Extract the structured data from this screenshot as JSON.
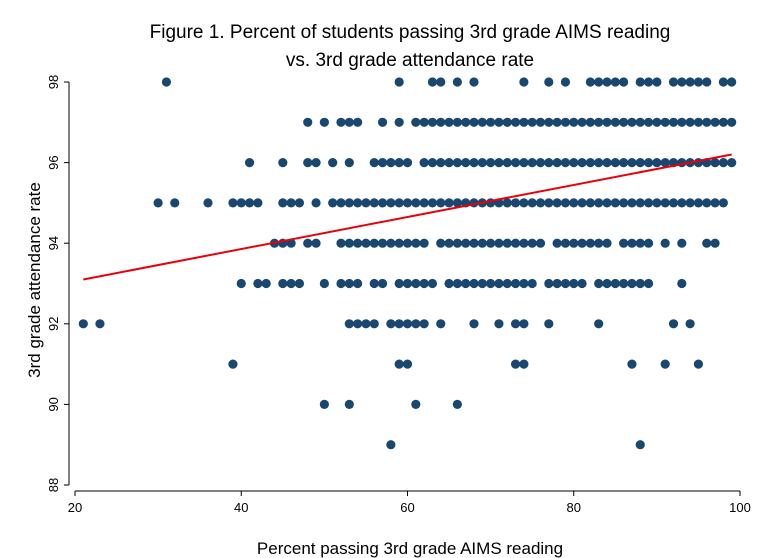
{
  "chart_data": {
    "type": "scatter",
    "title_lines": [
      "Figure 1. Percent of students passing 3rd grade AIMS reading",
      "vs. 3rd grade attendance rate"
    ],
    "xlabel": "Percent passing 3rd grade AIMS reading",
    "ylabel": "3rd grade attendance rate",
    "xlim": [
      20,
      100
    ],
    "ylim": [
      88,
      98
    ],
    "xticks": [
      "20",
      "40",
      "60",
      "80",
      "100"
    ],
    "yticks": [
      "88",
      "90",
      "92",
      "94",
      "96",
      "98"
    ],
    "grid": false,
    "colors": {
      "points": "#1a476f",
      "fit_line": "#e8000b",
      "axes": "#000000"
    },
    "series": [
      {
        "type": "scatter",
        "points": [
          [
            31,
            98
          ],
          [
            59,
            98
          ],
          [
            63,
            98
          ],
          [
            64,
            98
          ],
          [
            66,
            98
          ],
          [
            68,
            98
          ],
          [
            74,
            98
          ],
          [
            77,
            98
          ],
          [
            79,
            98
          ],
          [
            82,
            98
          ],
          [
            83,
            98
          ],
          [
            84,
            98
          ],
          [
            85,
            98
          ],
          [
            86,
            98
          ],
          [
            88,
            98
          ],
          [
            89,
            98
          ],
          [
            90,
            98
          ],
          [
            92,
            98
          ],
          [
            93,
            98
          ],
          [
            94,
            98
          ],
          [
            95,
            98
          ],
          [
            96,
            98
          ],
          [
            98,
            98
          ],
          [
            99,
            98
          ],
          [
            48,
            97
          ],
          [
            50,
            97
          ],
          [
            52,
            97
          ],
          [
            53,
            97
          ],
          [
            54,
            97
          ],
          [
            57,
            97
          ],
          [
            59,
            97
          ],
          [
            61,
            97
          ],
          [
            62,
            97
          ],
          [
            63,
            97
          ],
          [
            64,
            97
          ],
          [
            65,
            97
          ],
          [
            66,
            97
          ],
          [
            67,
            97
          ],
          [
            68,
            97
          ],
          [
            69,
            97
          ],
          [
            70,
            97
          ],
          [
            71,
            97
          ],
          [
            72,
            97
          ],
          [
            73,
            97
          ],
          [
            74,
            97
          ],
          [
            75,
            97
          ],
          [
            76,
            97
          ],
          [
            77,
            97
          ],
          [
            78,
            97
          ],
          [
            79,
            97
          ],
          [
            80,
            97
          ],
          [
            81,
            97
          ],
          [
            82,
            97
          ],
          [
            83,
            97
          ],
          [
            84,
            97
          ],
          [
            85,
            97
          ],
          [
            86,
            97
          ],
          [
            87,
            97
          ],
          [
            88,
            97
          ],
          [
            89,
            97
          ],
          [
            90,
            97
          ],
          [
            91,
            97
          ],
          [
            92,
            97
          ],
          [
            93,
            97
          ],
          [
            94,
            97
          ],
          [
            95,
            97
          ],
          [
            96,
            97
          ],
          [
            97,
            97
          ],
          [
            98,
            97
          ],
          [
            99,
            97
          ],
          [
            41,
            96
          ],
          [
            45,
            96
          ],
          [
            48,
            96
          ],
          [
            49,
            96
          ],
          [
            51,
            96
          ],
          [
            53,
            96
          ],
          [
            56,
            96
          ],
          [
            57,
            96
          ],
          [
            58,
            96
          ],
          [
            59,
            96
          ],
          [
            60,
            96
          ],
          [
            62,
            96
          ],
          [
            63,
            96
          ],
          [
            64,
            96
          ],
          [
            65,
            96
          ],
          [
            66,
            96
          ],
          [
            67,
            96
          ],
          [
            68,
            96
          ],
          [
            69,
            96
          ],
          [
            70,
            96
          ],
          [
            71,
            96
          ],
          [
            72,
            96
          ],
          [
            73,
            96
          ],
          [
            74,
            96
          ],
          [
            75,
            96
          ],
          [
            76,
            96
          ],
          [
            77,
            96
          ],
          [
            78,
            96
          ],
          [
            79,
            96
          ],
          [
            80,
            96
          ],
          [
            81,
            96
          ],
          [
            82,
            96
          ],
          [
            83,
            96
          ],
          [
            84,
            96
          ],
          [
            85,
            96
          ],
          [
            86,
            96
          ],
          [
            87,
            96
          ],
          [
            88,
            96
          ],
          [
            89,
            96
          ],
          [
            90,
            96
          ],
          [
            91,
            96
          ],
          [
            92,
            96
          ],
          [
            93,
            96
          ],
          [
            94,
            96
          ],
          [
            95,
            96
          ],
          [
            96,
            96
          ],
          [
            97,
            96
          ],
          [
            98,
            96
          ],
          [
            99,
            96
          ],
          [
            30,
            95
          ],
          [
            32,
            95
          ],
          [
            36,
            95
          ],
          [
            39,
            95
          ],
          [
            40,
            95
          ],
          [
            41,
            95
          ],
          [
            42,
            95
          ],
          [
            45,
            95
          ],
          [
            46,
            95
          ],
          [
            47,
            95
          ],
          [
            49,
            95
          ],
          [
            51,
            95
          ],
          [
            52,
            95
          ],
          [
            53,
            95
          ],
          [
            54,
            95
          ],
          [
            55,
            95
          ],
          [
            56,
            95
          ],
          [
            57,
            95
          ],
          [
            58,
            95
          ],
          [
            59,
            95
          ],
          [
            60,
            95
          ],
          [
            61,
            95
          ],
          [
            62,
            95
          ],
          [
            63,
            95
          ],
          [
            64,
            95
          ],
          [
            65,
            95
          ],
          [
            66,
            95
          ],
          [
            67,
            95
          ],
          [
            68,
            95
          ],
          [
            69,
            95
          ],
          [
            70,
            95
          ],
          [
            71,
            95
          ],
          [
            72,
            95
          ],
          [
            73,
            95
          ],
          [
            74,
            95
          ],
          [
            75,
            95
          ],
          [
            76,
            95
          ],
          [
            77,
            95
          ],
          [
            78,
            95
          ],
          [
            79,
            95
          ],
          [
            80,
            95
          ],
          [
            81,
            95
          ],
          [
            82,
            95
          ],
          [
            83,
            95
          ],
          [
            84,
            95
          ],
          [
            85,
            95
          ],
          [
            86,
            95
          ],
          [
            87,
            95
          ],
          [
            88,
            95
          ],
          [
            89,
            95
          ],
          [
            90,
            95
          ],
          [
            91,
            95
          ],
          [
            92,
            95
          ],
          [
            93,
            95
          ],
          [
            94,
            95
          ],
          [
            95,
            95
          ],
          [
            96,
            95
          ],
          [
            97,
            95
          ],
          [
            98,
            95
          ],
          [
            44,
            94
          ],
          [
            45,
            94
          ],
          [
            46,
            94
          ],
          [
            48,
            94
          ],
          [
            49,
            94
          ],
          [
            52,
            94
          ],
          [
            53,
            94
          ],
          [
            54,
            94
          ],
          [
            55,
            94
          ],
          [
            56,
            94
          ],
          [
            57,
            94
          ],
          [
            58,
            94
          ],
          [
            59,
            94
          ],
          [
            60,
            94
          ],
          [
            61,
            94
          ],
          [
            62,
            94
          ],
          [
            64,
            94
          ],
          [
            65,
            94
          ],
          [
            66,
            94
          ],
          [
            67,
            94
          ],
          [
            68,
            94
          ],
          [
            69,
            94
          ],
          [
            70,
            94
          ],
          [
            71,
            94
          ],
          [
            72,
            94
          ],
          [
            73,
            94
          ],
          [
            74,
            94
          ],
          [
            75,
            94
          ],
          [
            76,
            94
          ],
          [
            78,
            94
          ],
          [
            79,
            94
          ],
          [
            80,
            94
          ],
          [
            81,
            94
          ],
          [
            82,
            94
          ],
          [
            83,
            94
          ],
          [
            84,
            94
          ],
          [
            86,
            94
          ],
          [
            87,
            94
          ],
          [
            88,
            94
          ],
          [
            89,
            94
          ],
          [
            91,
            94
          ],
          [
            93,
            94
          ],
          [
            96,
            94
          ],
          [
            97,
            94
          ],
          [
            40,
            93
          ],
          [
            42,
            93
          ],
          [
            43,
            93
          ],
          [
            45,
            93
          ],
          [
            46,
            93
          ],
          [
            47,
            93
          ],
          [
            50,
            93
          ],
          [
            52,
            93
          ],
          [
            53,
            93
          ],
          [
            54,
            93
          ],
          [
            56,
            93
          ],
          [
            57,
            93
          ],
          [
            59,
            93
          ],
          [
            60,
            93
          ],
          [
            61,
            93
          ],
          [
            62,
            93
          ],
          [
            63,
            93
          ],
          [
            65,
            93
          ],
          [
            66,
            93
          ],
          [
            67,
            93
          ],
          [
            68,
            93
          ],
          [
            69,
            93
          ],
          [
            70,
            93
          ],
          [
            71,
            93
          ],
          [
            72,
            93
          ],
          [
            73,
            93
          ],
          [
            74,
            93
          ],
          [
            75,
            93
          ],
          [
            77,
            93
          ],
          [
            78,
            93
          ],
          [
            79,
            93
          ],
          [
            80,
            93
          ],
          [
            81,
            93
          ],
          [
            83,
            93
          ],
          [
            84,
            93
          ],
          [
            85,
            93
          ],
          [
            86,
            93
          ],
          [
            87,
            93
          ],
          [
            88,
            93
          ],
          [
            89,
            93
          ],
          [
            93,
            93
          ],
          [
            21,
            92
          ],
          [
            23,
            92
          ],
          [
            53,
            92
          ],
          [
            54,
            92
          ],
          [
            55,
            92
          ],
          [
            56,
            92
          ],
          [
            58,
            92
          ],
          [
            59,
            92
          ],
          [
            60,
            92
          ],
          [
            61,
            92
          ],
          [
            62,
            92
          ],
          [
            64,
            92
          ],
          [
            68,
            92
          ],
          [
            71,
            92
          ],
          [
            73,
            92
          ],
          [
            74,
            92
          ],
          [
            77,
            92
          ],
          [
            83,
            92
          ],
          [
            92,
            92
          ],
          [
            94,
            92
          ],
          [
            39,
            91
          ],
          [
            59,
            91
          ],
          [
            60,
            91
          ],
          [
            73,
            91
          ],
          [
            74,
            91
          ],
          [
            87,
            91
          ],
          [
            91,
            91
          ],
          [
            95,
            91
          ],
          [
            50,
            90
          ],
          [
            53,
            90
          ],
          [
            61,
            90
          ],
          [
            66,
            90
          ],
          [
            58,
            89
          ],
          [
            88,
            89
          ]
        ]
      },
      {
        "type": "line",
        "fit": [
          [
            21,
            93.1
          ],
          [
            99,
            96.2
          ]
        ]
      }
    ]
  }
}
